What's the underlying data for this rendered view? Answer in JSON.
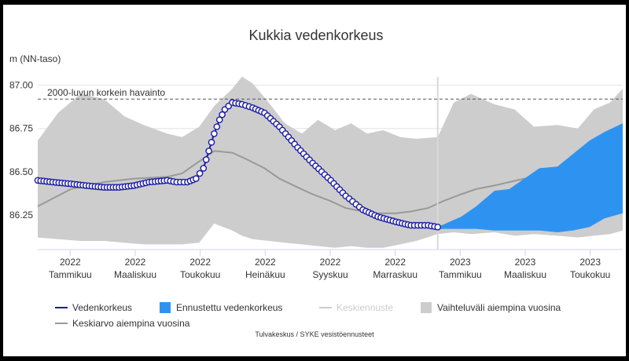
{
  "chart_data": {
    "type": "line",
    "title": "Kukkia vedenkorkeus",
    "ylabel": "m (NN-taso)",
    "ylim": [
      86.05,
      87.03
    ],
    "y_ticks": [
      "87.00",
      "86.75",
      "86.50",
      "86.25"
    ],
    "x_ticks": [
      {
        "year": "2022",
        "month": "Tammikuu"
      },
      {
        "year": "2022",
        "month": "Maaliskuu"
      },
      {
        "year": "2022",
        "month": "Toukokuu"
      },
      {
        "year": "2022",
        "month": "Heinäkuu"
      },
      {
        "year": "2022",
        "month": "Syyskuu"
      },
      {
        "year": "2022",
        "month": "Marraskuu"
      },
      {
        "year": "2023",
        "month": "Tammikuu"
      },
      {
        "year": "2023",
        "month": "Maaliskuu"
      },
      {
        "year": "2023",
        "month": "Toukokuu"
      }
    ],
    "x_range": [
      "2021-12-01",
      "2023-06-01"
    ],
    "forecast_start": "2022-12-10",
    "annotation": {
      "label": "2000-luvun korkein havainto",
      "value": 86.92
    },
    "grid": true,
    "legend_position": "bottom",
    "legend": [
      {
        "label": "Vedenkorkeus",
        "kind": "line",
        "color": "#1a1aa6"
      },
      {
        "label": "Ennustettu vedenkorkeus",
        "kind": "box",
        "color": "#2e93f0"
      },
      {
        "label": "Keskiennuste",
        "kind": "line",
        "color": "#cccccc",
        "muted": true
      },
      {
        "label": "Vaihteluväli aiempina vuosina",
        "kind": "box",
        "color": "#cdcdcd"
      },
      {
        "label": "Keskiarvo aiempina vuosina",
        "kind": "line",
        "color": "#999999"
      }
    ],
    "credits": "Tulvakeskus / SYKE vesistöennusteet",
    "colors": {
      "observed": "#1a1aa6",
      "forecast": "#2e93f0",
      "range": "#cdcdcd",
      "mean": "#999999",
      "divider": "#d9d9d9"
    },
    "series": [
      {
        "name": "Vedenkorkeus",
        "x": [
          "2021-12-01",
          "2021-12-15",
          "2022-01-01",
          "2022-01-15",
          "2022-02-01",
          "2022-02-15",
          "2022-03-01",
          "2022-03-15",
          "2022-04-01",
          "2022-04-10",
          "2022-04-20",
          "2022-04-28",
          "2022-05-05",
          "2022-05-10",
          "2022-05-15",
          "2022-05-20",
          "2022-05-25",
          "2022-06-01",
          "2022-06-10",
          "2022-06-20",
          "2022-07-01",
          "2022-07-15",
          "2022-08-01",
          "2022-08-15",
          "2022-09-01",
          "2022-09-15",
          "2022-10-01",
          "2022-10-15",
          "2022-11-01",
          "2022-11-15",
          "2022-12-01",
          "2022-12-10"
        ],
        "y": [
          86.45,
          86.44,
          86.43,
          86.42,
          86.41,
          86.41,
          86.42,
          86.44,
          86.45,
          86.44,
          86.44,
          86.46,
          86.52,
          86.62,
          86.72,
          86.8,
          86.86,
          86.9,
          86.89,
          86.87,
          86.84,
          86.76,
          86.64,
          86.55,
          86.45,
          86.36,
          86.28,
          86.24,
          86.21,
          86.19,
          86.19,
          86.18
        ]
      },
      {
        "name": "Ennustettu vedenkorkeus",
        "x": [
          "2022-12-10",
          "2023-01-01",
          "2023-01-15",
          "2023-02-01",
          "2023-02-15",
          "2023-03-01",
          "2023-03-15",
          "2023-04-01",
          "2023-04-15",
          "2023-05-01",
          "2023-05-15",
          "2023-06-01"
        ],
        "upper": [
          86.18,
          86.24,
          86.3,
          86.39,
          86.4,
          86.46,
          86.52,
          86.53,
          86.6,
          86.68,
          86.73,
          86.78
        ],
        "lower": [
          86.17,
          86.17,
          86.17,
          86.16,
          86.16,
          86.16,
          86.16,
          86.15,
          86.16,
          86.18,
          86.23,
          86.26
        ]
      },
      {
        "name": "Keskiarvo aiempina vuosina",
        "x": [
          "2021-12-01",
          "2022-01-01",
          "2022-02-01",
          "2022-03-01",
          "2022-04-01",
          "2022-04-15",
          "2022-05-01",
          "2022-05-15",
          "2022-06-01",
          "2022-06-15",
          "2022-07-01",
          "2022-07-15",
          "2022-08-01",
          "2022-08-15",
          "2022-09-01",
          "2022-09-15",
          "2022-10-01",
          "2022-10-15",
          "2022-11-01",
          "2022-11-15",
          "2022-12-01",
          "2022-12-15",
          "2023-01-01",
          "2023-01-15",
          "2023-02-01",
          "2023-02-15",
          "2023-03-01",
          "2023-03-15",
          "2023-04-01",
          "2023-04-15",
          "2023-05-01",
          "2023-05-15",
          "2023-06-01"
        ],
        "y": [
          86.3,
          86.4,
          86.44,
          86.46,
          86.47,
          86.49,
          86.56,
          86.62,
          86.61,
          86.57,
          86.52,
          86.46,
          86.41,
          86.37,
          86.33,
          86.29,
          86.27,
          86.26,
          86.26,
          86.27,
          86.29,
          86.33,
          86.37,
          86.4,
          86.42,
          86.44,
          86.46,
          86.47,
          86.48,
          86.51,
          86.58,
          86.62,
          86.61
        ]
      },
      {
        "name": "Vaihteluväli aiempina vuosina",
        "x": [
          "2021-12-01",
          "2021-12-20",
          "2022-01-10",
          "2022-02-01",
          "2022-02-20",
          "2022-03-10",
          "2022-04-01",
          "2022-04-15",
          "2022-05-01",
          "2022-05-15",
          "2022-06-01",
          "2022-06-10",
          "2022-06-20",
          "2022-07-05",
          "2022-07-20",
          "2022-08-05",
          "2022-08-20",
          "2022-09-05",
          "2022-09-20",
          "2022-10-05",
          "2022-10-20",
          "2022-11-05",
          "2022-11-20",
          "2022-12-10",
          "2022-12-25",
          "2023-01-10",
          "2023-02-01",
          "2023-02-20",
          "2023-03-10",
          "2023-04-01",
          "2023-04-20",
          "2023-05-05",
          "2023-05-20",
          "2023-06-01"
        ],
        "upper": [
          86.68,
          86.84,
          86.95,
          86.92,
          86.82,
          86.77,
          86.72,
          86.7,
          86.76,
          86.88,
          86.98,
          87.05,
          87.01,
          86.9,
          86.78,
          86.72,
          86.8,
          86.74,
          86.78,
          86.72,
          86.74,
          86.7,
          86.69,
          86.7,
          86.9,
          86.95,
          86.89,
          86.86,
          86.76,
          86.77,
          86.75,
          86.86,
          86.9,
          86.98
        ],
        "lower": [
          86.12,
          86.11,
          86.1,
          86.1,
          86.09,
          86.08,
          86.08,
          86.08,
          86.09,
          86.2,
          86.16,
          86.13,
          86.11,
          86.1,
          86.09,
          86.08,
          86.07,
          86.06,
          86.07,
          86.06,
          86.06,
          86.08,
          86.1,
          86.14,
          86.15,
          86.14,
          86.15,
          86.13,
          86.14,
          86.13,
          86.12,
          86.13,
          86.14,
          86.16
        ]
      }
    ]
  }
}
